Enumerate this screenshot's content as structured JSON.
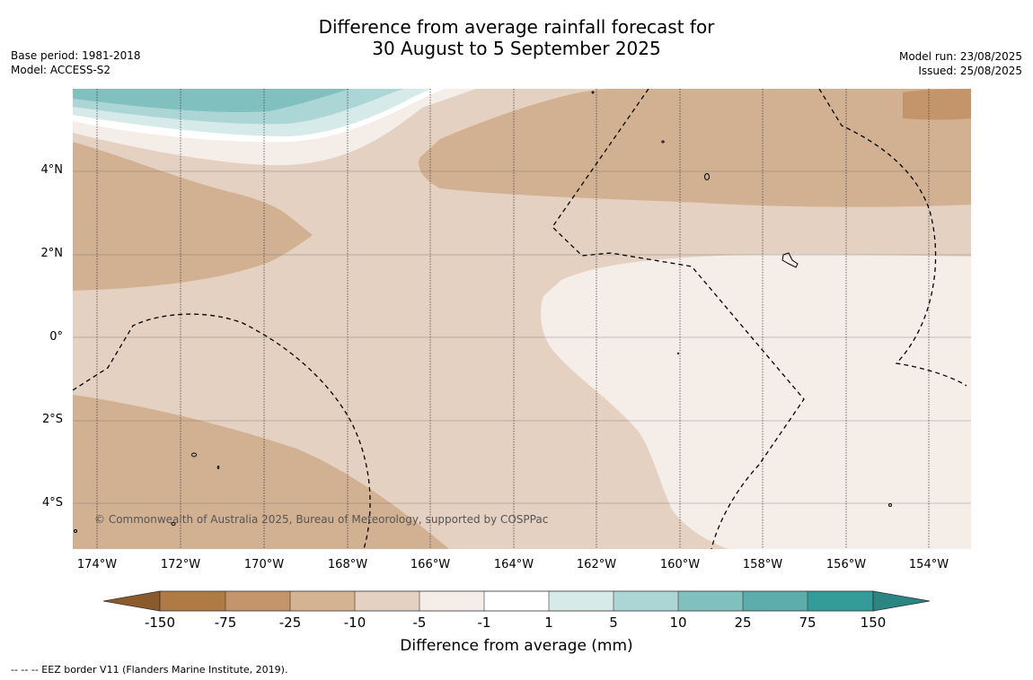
{
  "title_line1": "Difference from average rainfall forecast for",
  "title_line2": "30 August to 5 September 2025",
  "base_period": "Base period: 1981-2018",
  "model": "Model: ACCESS-S2",
  "model_run": "Model run: 23/08/2025",
  "issued": "Issued: 25/08/2025",
  "copyright": "© Commonwealth of Australia 2025, Bureau of Meteorology, supported by COSPPac",
  "lat_labels": [
    "4°N",
    "2°N",
    "0°",
    "2°S",
    "4°S"
  ],
  "lon_labels": [
    "174°W",
    "172°W",
    "170°W",
    "168°W",
    "166°W",
    "164°W",
    "162°W",
    "160°W",
    "158°W",
    "156°W",
    "154°W"
  ],
  "colorbar": {
    "labels": [
      "-150",
      "-75",
      "-25",
      "-10",
      "-5",
      "-1",
      "1",
      "5",
      "10",
      "25",
      "75",
      "150"
    ],
    "colors": [
      "#8b5a2b",
      "#b07a45",
      "#c4956a",
      "#d4b393",
      "#e4d1c1",
      "#f5ede8",
      "#ffffff",
      "#d6ebe9",
      "#acd6d5",
      "#80c1bf",
      "#5cadab",
      "#339b98",
      "#2b8582"
    ],
    "title": "Difference from average (mm)"
  },
  "footnote": "--  --  -- EEZ border V11 (Flanders Marine Institute, 2019)."
}
